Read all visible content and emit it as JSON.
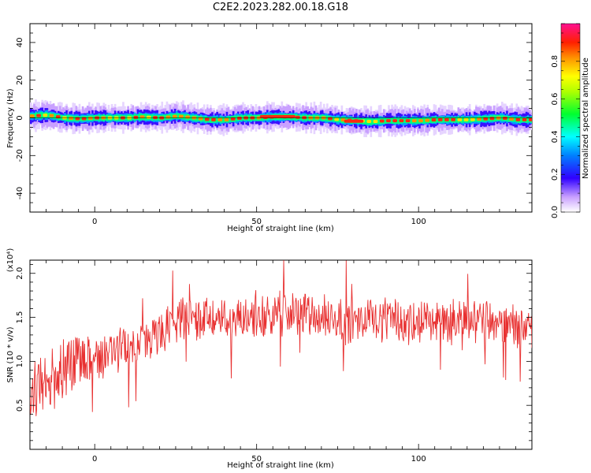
{
  "title": "C2E2.2023.282.00.18.G18",
  "chart_data": [
    {
      "type": "heatmap",
      "xlabel": "Height of straight line (km)",
      "ylabel": "Frequency (Hz)",
      "xlim": [
        -20,
        135
      ],
      "ylim": [
        -50,
        50
      ],
      "x_ticks": [
        0,
        50,
        100
      ],
      "y_ticks": [
        -40,
        -20,
        0,
        20,
        40
      ],
      "colorbar": {
        "label": "Normalized spectral amplitude",
        "range": [
          0,
          1
        ],
        "ticks": [
          "0.0",
          "0.2",
          "0.4",
          "0.6",
          "0.8"
        ]
      },
      "band": {
        "center_hz": 0,
        "strong_halfwidth_hz": 1.5,
        "weak_halfwidth_hz": 5,
        "centerline": [
          [
            -20,
            1
          ],
          [
            -15,
            1.5
          ],
          [
            -10,
            0
          ],
          [
            -5,
            -0.5
          ],
          [
            0,
            0
          ],
          [
            10,
            0
          ],
          [
            14,
            0.5
          ],
          [
            20,
            0
          ],
          [
            25,
            1
          ],
          [
            30,
            0
          ],
          [
            35,
            -1
          ],
          [
            40,
            -1
          ],
          [
            45,
            0
          ],
          [
            50,
            0
          ],
          [
            55,
            0.5
          ],
          [
            60,
            0.5
          ],
          [
            65,
            0
          ],
          [
            70,
            0
          ],
          [
            75,
            -1
          ],
          [
            80,
            -1.5
          ],
          [
            85,
            -2
          ],
          [
            90,
            -1.5
          ],
          [
            95,
            -1.5
          ],
          [
            100,
            -1.5
          ],
          [
            105,
            -1
          ],
          [
            110,
            -1
          ],
          [
            115,
            -1
          ],
          [
            120,
            -0.5
          ],
          [
            125,
            0
          ],
          [
            130,
            -1
          ],
          [
            135,
            -1
          ]
        ]
      },
      "grid": false
    },
    {
      "type": "line",
      "xlabel": "Height of straight line (km)",
      "ylabel": "SNR (10 * v/v)",
      "y_scale_label": "(x10⁴)",
      "xlim": [
        -20,
        135
      ],
      "ylim": [
        0,
        2.15
      ],
      "x_ticks": [
        0,
        50,
        100
      ],
      "y_ticks": [
        "0.5",
        "1.0",
        "1.5",
        "2.0"
      ],
      "series": [
        {
          "color": "#e83030",
          "trend": {
            "x": [
              -20,
              -15,
              -10,
              -5,
              0,
              5,
              10,
              15,
              20,
              25,
              30,
              35,
              40,
              45,
              50,
              55,
              60,
              65,
              70,
              75,
              80,
              85,
              90,
              95,
              100,
              105,
              110,
              115,
              120,
              125,
              130,
              135
            ],
            "y": [
              0.65,
              0.75,
              0.9,
              1.0,
              1.05,
              1.1,
              1.15,
              1.2,
              1.3,
              1.45,
              1.5,
              1.5,
              1.45,
              1.5,
              1.5,
              1.5,
              1.55,
              1.55,
              1.5,
              1.5,
              1.45,
              1.5,
              1.45,
              1.45,
              1.45,
              1.45,
              1.45,
              1.5,
              1.45,
              1.4,
              1.4,
              1.4
            ]
          },
          "noise_amplitude": 0.22
        }
      ],
      "grid": false
    }
  ]
}
